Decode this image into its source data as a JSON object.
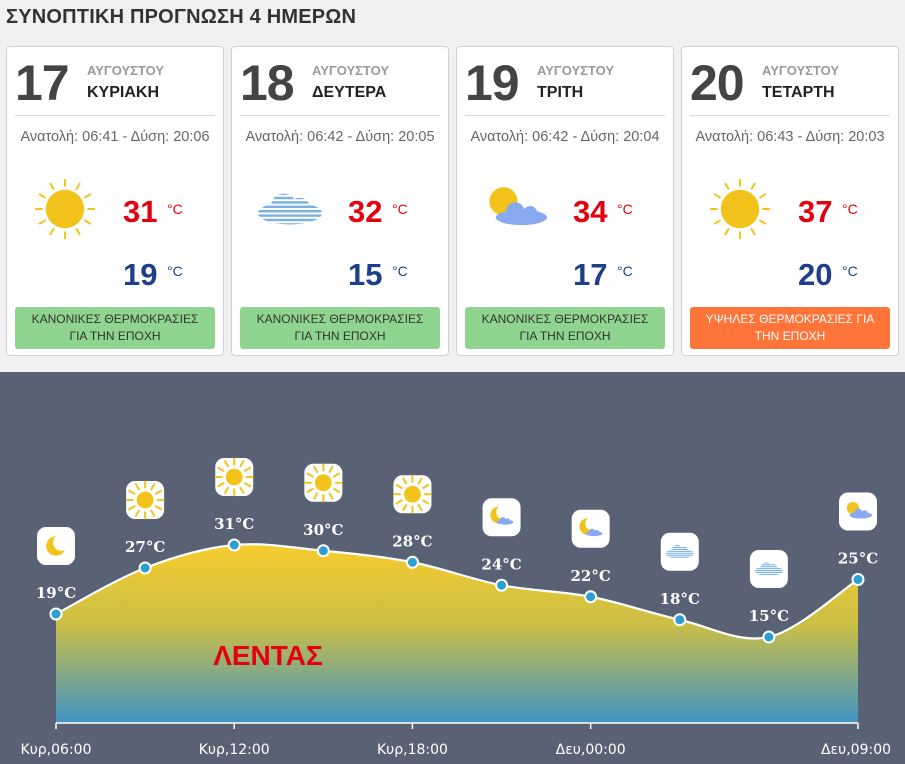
{
  "header": {
    "title": "ΣΥΝΟΠΤΙΚΗ ΠΡΟΓΝΩΣΗ 4 ΗΜΕΡΩΝ"
  },
  "days": [
    {
      "day": "17",
      "month": "ΑΥΓΟΥΣΤΟΥ",
      "weekday": "ΚΥΡΙΑΚΗ",
      "sun": "Ανατολή: 06:41 - Δύση: 20:06",
      "icon": "sun-icon",
      "max": "31",
      "min": "19",
      "unit": "°C",
      "badge": [
        "ΚΑΝΟΝΙΚΕΣ ΘΕΡΜΟΚΡΑΣΙΕΣ",
        "ΓΙΑ ΤΗΝ ΕΠΟΧΗ"
      ],
      "badge_type": "normal"
    },
    {
      "day": "18",
      "month": "ΑΥΓΟΥΣΤΟΥ",
      "weekday": "ΔΕΥΤΕΡΑ",
      "sun": "Ανατολή: 06:42 - Δύση: 20:05",
      "icon": "haze-cloud-icon",
      "max": "32",
      "min": "15",
      "unit": "°C",
      "badge": [
        "ΚΑΝΟΝΙΚΕΣ ΘΕΡΜΟΚΡΑΣΙΕΣ",
        "ΓΙΑ ΤΗΝ ΕΠΟΧΗ"
      ],
      "badge_type": "normal"
    },
    {
      "day": "19",
      "month": "ΑΥΓΟΥΣΤΟΥ",
      "weekday": "ΤΡΙΤΗ",
      "sun": "Ανατολή: 06:42 - Δύση: 20:04",
      "icon": "partly-cloudy-icon",
      "max": "34",
      "min": "17",
      "unit": "°C",
      "badge": [
        "ΚΑΝΟΝΙΚΕΣ ΘΕΡΜΟΚΡΑΣΙΕΣ",
        "ΓΙΑ ΤΗΝ ΕΠΟΧΗ"
      ],
      "badge_type": "normal"
    },
    {
      "day": "20",
      "month": "ΑΥΓΟΥΣΤΟΥ",
      "weekday": "ΤΕΤΑΡΤΗ",
      "sun": "Ανατολή: 06:43 - Δύση: 20:03",
      "icon": "sun-icon",
      "max": "37",
      "min": "20",
      "unit": "°C",
      "badge": [
        "ΥΨΗΛΕΣ ΘΕΡΜΟΚΡΑΣΙΕΣ ΓΙΑ",
        "ΤΗΝ ΕΠΟΧΗ"
      ],
      "badge_type": "high"
    }
  ],
  "colors": {
    "max": "#e3000f",
    "min": "#1f3e8c",
    "badge_normal": "#8fd48f",
    "badge_high": "#ff7438",
    "panel": "#596275",
    "point": "#2a9fd0"
  },
  "chart_data": {
    "type": "area",
    "location": "ΛΕΝΤΑΣ",
    "x_tick_labels": [
      "Κυρ,06:00",
      "Κυρ,12:00",
      "Κυρ,18:00",
      "Δευ,00:00",
      "Δευ,09:00"
    ],
    "points": [
      {
        "time_hours": 0,
        "temp": 19,
        "label": "19°C",
        "icon": "moon-icon"
      },
      {
        "time_hours": 3,
        "temp": 27,
        "label": "27°C",
        "icon": "sun-icon"
      },
      {
        "time_hours": 6,
        "temp": 31,
        "label": "31°C",
        "icon": "sun-icon"
      },
      {
        "time_hours": 9,
        "temp": 30,
        "label": "30°C",
        "icon": "sun-icon"
      },
      {
        "time_hours": 12,
        "temp": 28,
        "label": "28°C",
        "icon": "sun-icon"
      },
      {
        "time_hours": 15,
        "temp": 24,
        "label": "24°C",
        "icon": "moon-cloud-icon"
      },
      {
        "time_hours": 18,
        "temp": 22,
        "label": "22°C",
        "icon": "moon-cloud-icon"
      },
      {
        "time_hours": 21,
        "temp": 18,
        "label": "18°C",
        "icon": "haze-cloud-icon"
      },
      {
        "time_hours": 24,
        "temp": 15,
        "label": "15°C",
        "icon": "haze-cloud-icon"
      },
      {
        "time_hours": 27,
        "temp": 25,
        "label": "25°C",
        "icon": "partly-cloudy-icon"
      }
    ],
    "x_ticks_hours": [
      0,
      6,
      12,
      18,
      27
    ],
    "y_range": [
      10,
      35
    ]
  }
}
